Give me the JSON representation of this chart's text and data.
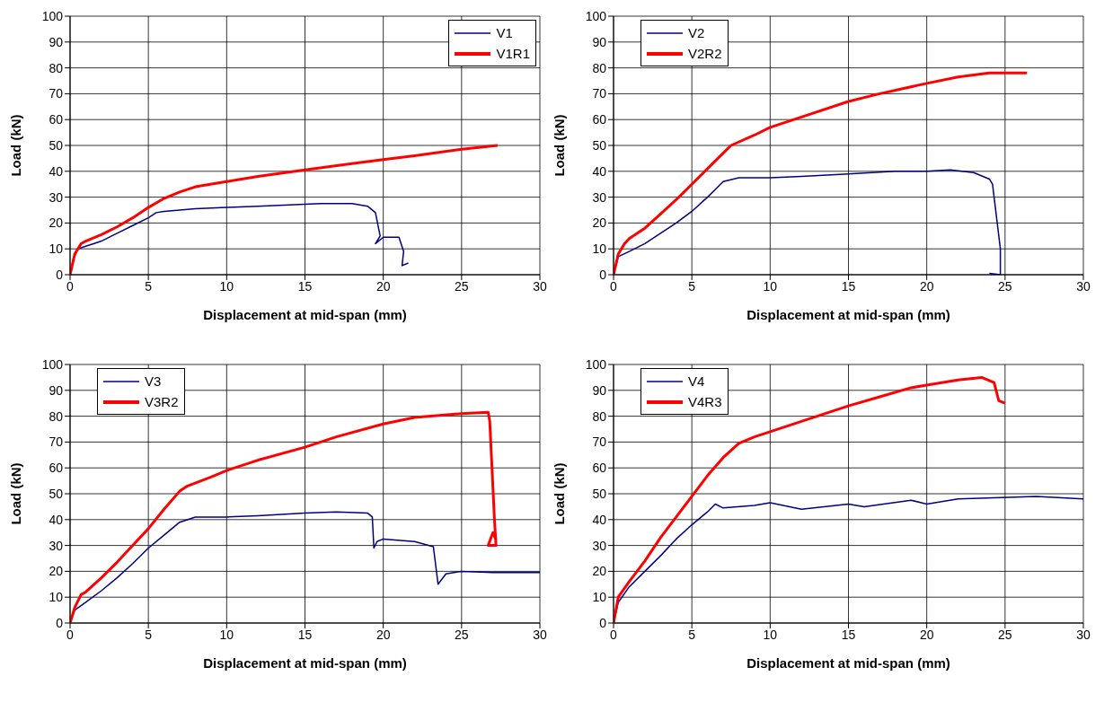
{
  "chart_data": [
    {
      "type": "line",
      "xlabel": "Displacement at mid-span (mm)",
      "ylabel": "Load (kN)",
      "xlim": [
        0,
        30
      ],
      "xticks": [
        0,
        5,
        10,
        15,
        20,
        25,
        30
      ],
      "ylim": [
        0,
        100
      ],
      "yticks": [
        0,
        10,
        20,
        30,
        40,
        50,
        60,
        70,
        80,
        90,
        100
      ],
      "grid": true,
      "legend": "top right",
      "marker": "none",
      "line_style": "solid",
      "series": [
        {
          "name": "V1",
          "color": "#000080",
          "x": [
            0,
            0.2,
            0.5,
            1,
            1.5,
            2,
            3,
            4,
            5,
            5.5,
            6,
            7,
            8,
            10,
            12,
            14,
            16,
            18,
            19,
            19.5,
            19.8,
            19.5,
            20,
            21,
            21.3,
            21.2,
            21.6
          ],
          "values": [
            0,
            6,
            10,
            11,
            12,
            13,
            16,
            19,
            22,
            24,
            24.5,
            25,
            25.5,
            26,
            26.5,
            27,
            27.5,
            27.5,
            26.5,
            24,
            15,
            12,
            14.5,
            14.5,
            9,
            3.5,
            4.5
          ]
        },
        {
          "name": "V1R1",
          "color": "#ff0000",
          "x": [
            0,
            0.3,
            0.7,
            1,
            2,
            3,
            4,
            5,
            6,
            7,
            8,
            10,
            12,
            15,
            18,
            20,
            22,
            25,
            27.3
          ],
          "values": [
            0,
            8,
            12,
            13,
            15.5,
            18.5,
            22,
            26,
            29.5,
            32,
            34,
            36,
            38,
            40.5,
            43,
            44.5,
            46,
            48.5,
            50
          ]
        }
      ]
    },
    {
      "type": "line",
      "xlabel": "Displacement at mid-span (mm)",
      "ylabel": "Load (kN)",
      "xlim": [
        0,
        30
      ],
      "xticks": [
        0,
        5,
        10,
        15,
        20,
        25,
        30
      ],
      "ylim": [
        0,
        100
      ],
      "yticks": [
        0,
        10,
        20,
        30,
        40,
        50,
        60,
        70,
        80,
        90,
        100
      ],
      "grid": true,
      "legend": "top left",
      "marker": "none",
      "line_style": "solid",
      "series": [
        {
          "name": "V2",
          "color": "#000080",
          "x": [
            0,
            0.3,
            1,
            2,
            3,
            4,
            5,
            6,
            6.5,
            7,
            8,
            10,
            12,
            15,
            18,
            20,
            21.5,
            23,
            24,
            24.2,
            24.7,
            24.7,
            24
          ],
          "values": [
            0,
            7,
            9,
            12,
            16,
            20,
            24.5,
            30,
            33,
            36,
            37.5,
            37.5,
            38,
            39,
            40,
            40,
            40.5,
            39.5,
            37,
            35,
            10,
            0,
            0.5
          ]
        },
        {
          "name": "V2R2",
          "color": "#ff0000",
          "x": [
            0,
            0.3,
            0.7,
            1,
            2,
            3,
            4,
            5,
            6,
            7,
            7.5,
            9,
            10,
            12,
            15,
            17,
            20,
            22,
            24,
            26.4
          ],
          "values": [
            0,
            8,
            12,
            14,
            18,
            23.5,
            29,
            35,
            41,
            47,
            50,
            54,
            57,
            61,
            67,
            70,
            74,
            76.5,
            78,
            78
          ]
        }
      ]
    },
    {
      "type": "line",
      "xlabel": "Displacement at mid-span (mm)",
      "ylabel": "Load (kN)",
      "xlim": [
        0,
        30
      ],
      "xticks": [
        0,
        5,
        10,
        15,
        20,
        25,
        30
      ],
      "ylim": [
        0,
        100
      ],
      "yticks": [
        0,
        10,
        20,
        30,
        40,
        50,
        60,
        70,
        80,
        90,
        100
      ],
      "grid": true,
      "legend": "top left",
      "marker": "none",
      "line_style": "solid",
      "series": [
        {
          "name": "V3",
          "color": "#000080",
          "x": [
            0,
            0.3,
            1,
            2,
            3,
            4,
            5,
            6,
            7,
            8,
            10,
            12,
            15,
            17,
            19,
            19.3,
            19.4,
            19.6,
            20,
            22,
            23.2,
            23.5,
            24,
            25,
            27,
            30
          ],
          "values": [
            0,
            5,
            8,
            12.5,
            17.5,
            23,
            29,
            34,
            39,
            41,
            41,
            41.5,
            42.5,
            43,
            42.5,
            41,
            29,
            31.5,
            32.5,
            31.5,
            29.5,
            15,
            19,
            20,
            19.5,
            19.5
          ]
        },
        {
          "name": "V3R2",
          "color": "#ff0000",
          "x": [
            0,
            0.3,
            0.7,
            1,
            2,
            3,
            4,
            5,
            6,
            7,
            7.5,
            9,
            10,
            12,
            15,
            17,
            20,
            22,
            25,
            26.7,
            26.8,
            27.1,
            27.2,
            26.7,
            27,
            27.2
          ],
          "values": [
            0,
            6,
            11,
            12,
            17.5,
            23.5,
            30,
            36.5,
            44,
            51,
            53,
            56.5,
            59,
            63,
            68,
            72,
            77,
            79.5,
            81,
            81.5,
            78,
            40,
            30,
            30,
            35,
            32
          ]
        }
      ]
    },
    {
      "type": "line",
      "xlabel": "Displacement at mid-span (mm)",
      "ylabel": "Load (kN)",
      "xlim": [
        0,
        30
      ],
      "xticks": [
        0,
        5,
        10,
        15,
        20,
        25,
        30
      ],
      "ylim": [
        0,
        100
      ],
      "yticks": [
        0,
        10,
        20,
        30,
        40,
        50,
        60,
        70,
        80,
        90,
        100
      ],
      "grid": true,
      "legend": "top left",
      "marker": "none",
      "line_style": "solid",
      "series": [
        {
          "name": "V4",
          "color": "#000080",
          "x": [
            0,
            0.3,
            1,
            2,
            3,
            4,
            5,
            6,
            6.5,
            7,
            9,
            10,
            12,
            15,
            16,
            19,
            20,
            22,
            27,
            30
          ],
          "values": [
            0,
            8,
            14,
            20,
            26,
            32.5,
            38,
            43,
            46,
            44.5,
            45.5,
            46.5,
            44,
            46,
            45,
            47.5,
            46,
            48,
            49,
            48
          ]
        },
        {
          "name": "V4R3",
          "color": "#ff0000",
          "x": [
            0,
            0.3,
            1,
            2,
            3,
            4,
            5,
            6,
            7,
            8,
            9,
            10,
            12,
            15,
            17,
            19,
            20,
            22,
            23.5,
            24.3,
            24.6,
            25
          ],
          "values": [
            0,
            10,
            16,
            24,
            33,
            41,
            49,
            57,
            64,
            69.5,
            72,
            74,
            78,
            84,
            87.5,
            91,
            92,
            94,
            95,
            93,
            86,
            85
          ]
        }
      ]
    }
  ]
}
